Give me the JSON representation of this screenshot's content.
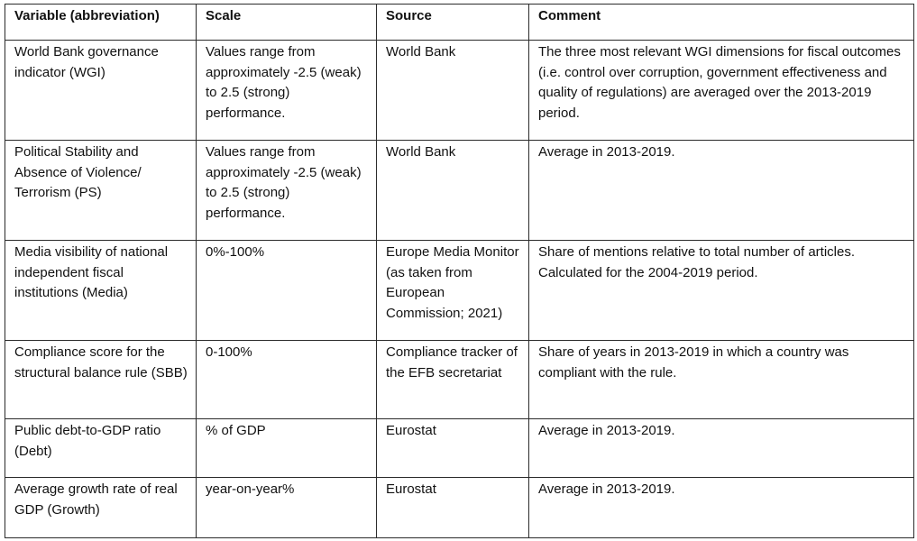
{
  "table": {
    "headers": [
      "Variable (abbreviation)",
      "Scale",
      "Source",
      "Comment"
    ],
    "rows": [
      {
        "variable": "World Bank governance indicator (WGI)",
        "scale": "Values range from approximately -2.5 (weak) to 2.5 (strong) performance.",
        "source": "World Bank",
        "comment": "The three most relevant WGI dimensions for fiscal outcomes (i.e. control over corruption, government effectiveness and quality of regulations) are averaged over the 2013-2019 period."
      },
      {
        "variable": "Political Stability and Absence of Violence/ Terrorism (PS)",
        "scale": "Values range from approximately -2.5 (weak) to 2.5 (strong) performance.",
        "source": "World Bank",
        "comment": "Average in 2013-2019."
      },
      {
        "variable": "Media visibility of national independent fiscal institutions (Media)",
        "scale": "0%-100%",
        "source": "Europe Media Monitor (as taken from European Commission; 2021)",
        "comment": "Share of mentions relative to total number of articles. Calculated for the 2004-2019 period."
      },
      {
        "variable": "Compliance score for the structural balance rule (SBB)",
        "scale": "0-100%",
        "source": "Compliance tracker of the EFB secretariat",
        "comment": "Share of years in 2013-2019 in which a country was compliant with the rule."
      },
      {
        "variable": "Public debt-to-GDP ratio (Debt)",
        "scale": "% of GDP",
        "source": "Eurostat",
        "comment": "Average in 2013-2019."
      },
      {
        "variable": "Average growth rate of real GDP (Growth)",
        "scale": "year-on-year%",
        "source": "Eurostat",
        "comment": "Average in 2013-2019."
      }
    ]
  }
}
